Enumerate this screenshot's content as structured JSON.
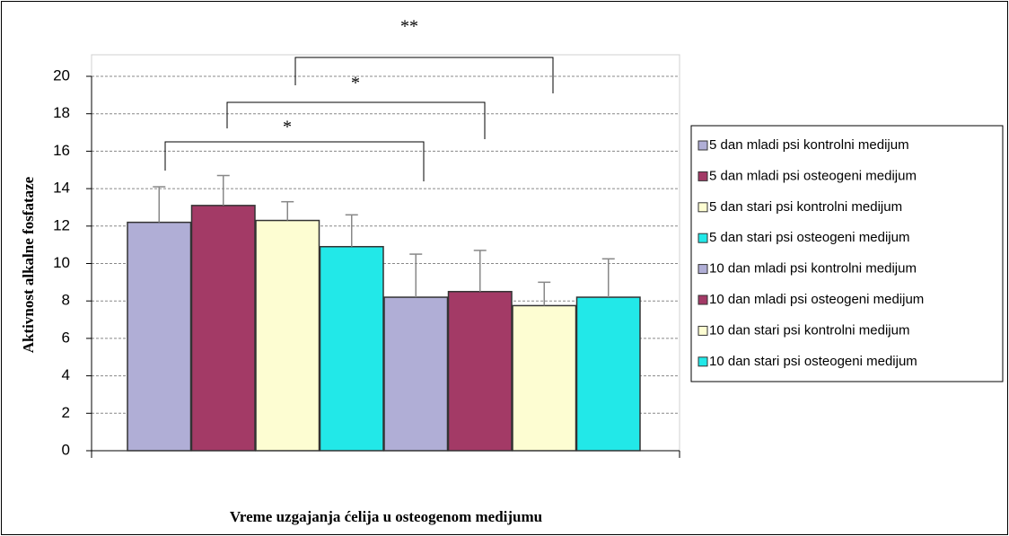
{
  "chart_data": {
    "type": "bar",
    "ylabel": "Aktivnost alkalne fosfataze",
    "xlabel": "Vreme uzgajanja ćelija u osteogenom medijumu",
    "ylim": [
      0,
      20
    ],
    "yticks": [
      0,
      2,
      4,
      6,
      8,
      10,
      12,
      14,
      16,
      18,
      20
    ],
    "grid": true,
    "legend": "right",
    "annotations": [
      "*",
      "*",
      "**"
    ],
    "series": [
      {
        "name": "5 dan mladi psi kontrolni medijum",
        "color": "#b0aed6",
        "values": [
          12.2
        ],
        "errors": [
          1.9
        ]
      },
      {
        "name": "5 dan mladi psi osteogeni medijum",
        "color": "#a33a66",
        "values": [
          13.1
        ],
        "errors": [
          1.6
        ]
      },
      {
        "name": "5 dan stari psi kontrolni medijum",
        "color": "#fdfdd2",
        "values": [
          12.3
        ],
        "errors": [
          1.0
        ]
      },
      {
        "name": "5 dan stari psi osteogeni medijum",
        "color": "#22e8e8",
        "values": [
          10.9
        ],
        "errors": [
          1.7
        ]
      },
      {
        "name": "10 dan mladi psi kontrolni medijum",
        "color": "#b0aed6",
        "values": [
          8.2
        ],
        "errors": [
          2.3
        ]
      },
      {
        "name": "10 dan mladi psi osteogeni medijum",
        "color": "#a33a66",
        "values": [
          8.5
        ],
        "errors": [
          2.2
        ]
      },
      {
        "name": "10 dan stari psi kontrolni medijum",
        "color": "#fdfdd2",
        "values": [
          7.75
        ],
        "errors": [
          1.25
        ]
      },
      {
        "name": "10 dan stari psi osteogeni medijum",
        "color": "#22e8e8",
        "values": [
          8.2
        ],
        "errors": [
          2.05
        ]
      }
    ]
  }
}
